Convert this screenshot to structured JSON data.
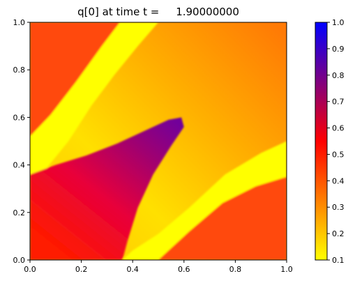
{
  "chart_data": {
    "type": "heatmap",
    "title": "q[0] at time t =     1.90000000",
    "xlabel": "",
    "ylabel": "",
    "xlim": [
      0.0,
      1.0
    ],
    "ylim": [
      0.0,
      1.0
    ],
    "x_ticks": [
      "0.0",
      "0.2",
      "0.4",
      "0.6",
      "0.8",
      "1.0"
    ],
    "y_ticks": [
      "0.0",
      "0.2",
      "0.4",
      "0.6",
      "0.8",
      "1.0"
    ],
    "grid": false,
    "colorbar": {
      "range": [
        0.1,
        1.0
      ],
      "ticks": [
        "0.1",
        "0.2",
        "0.3",
        "0.4",
        "0.5",
        "0.6",
        "0.7",
        "0.8",
        "0.9",
        "1.0"
      ],
      "colormap": [
        "#ffff00",
        "#ff0000",
        "#0000ff"
      ],
      "colormap_stops": [
        0.1,
        0.55,
        1.0
      ]
    },
    "regions": [
      {
        "name": "upper-left orange band",
        "value": 0.42,
        "color": "#ff4a0a",
        "polygon": [
          [
            0.0,
            0.52
          ],
          [
            0.0,
            1.0
          ],
          [
            0.35,
            1.0
          ],
          [
            0.28,
            0.9
          ],
          [
            0.18,
            0.75
          ],
          [
            0.08,
            0.61
          ]
        ]
      },
      {
        "name": "upper-left yellow band",
        "value": 0.12,
        "color": "#ffff00",
        "polygon": [
          [
            0.0,
            0.36
          ],
          [
            0.0,
            0.52
          ],
          [
            0.08,
            0.61
          ],
          [
            0.18,
            0.75
          ],
          [
            0.28,
            0.9
          ],
          [
            0.35,
            1.0
          ],
          [
            0.5,
            1.0
          ],
          [
            0.42,
            0.9
          ],
          [
            0.33,
            0.78
          ],
          [
            0.24,
            0.65
          ],
          [
            0.15,
            0.5
          ],
          [
            0.06,
            0.38
          ]
        ]
      },
      {
        "name": "lower-right yellow band",
        "value": 0.12,
        "color": "#ffff00",
        "polygon": [
          [
            0.36,
            0.0
          ],
          [
            0.5,
            0.0
          ],
          [
            0.62,
            0.12
          ],
          [
            0.75,
            0.24
          ],
          [
            0.88,
            0.31
          ],
          [
            1.0,
            0.35
          ],
          [
            1.0,
            0.5
          ],
          [
            0.9,
            0.45
          ],
          [
            0.76,
            0.36
          ],
          [
            0.62,
            0.22
          ],
          [
            0.5,
            0.11
          ],
          [
            0.4,
            0.04
          ]
        ]
      },
      {
        "name": "lower-right orange band",
        "value": 0.42,
        "color": "#ff4a0a",
        "polygon": [
          [
            0.5,
            0.0
          ],
          [
            1.0,
            0.0
          ],
          [
            1.0,
            0.35
          ],
          [
            0.88,
            0.31
          ],
          [
            0.75,
            0.24
          ],
          [
            0.62,
            0.12
          ]
        ]
      },
      {
        "name": "central wedge",
        "value": 0.65,
        "color_gradient": [
          "#ff0000",
          "#7a0090"
        ],
        "polygon": [
          [
            0.0,
            0.0
          ],
          [
            0.0,
            0.36
          ],
          [
            0.1,
            0.4
          ],
          [
            0.22,
            0.44
          ],
          [
            0.34,
            0.49
          ],
          [
            0.46,
            0.55
          ],
          [
            0.54,
            0.59
          ],
          [
            0.59,
            0.6
          ],
          [
            0.6,
            0.56
          ],
          [
            0.55,
            0.48
          ],
          [
            0.48,
            0.36
          ],
          [
            0.42,
            0.22
          ],
          [
            0.38,
            0.08
          ],
          [
            0.36,
            0.0
          ]
        ]
      }
    ]
  }
}
